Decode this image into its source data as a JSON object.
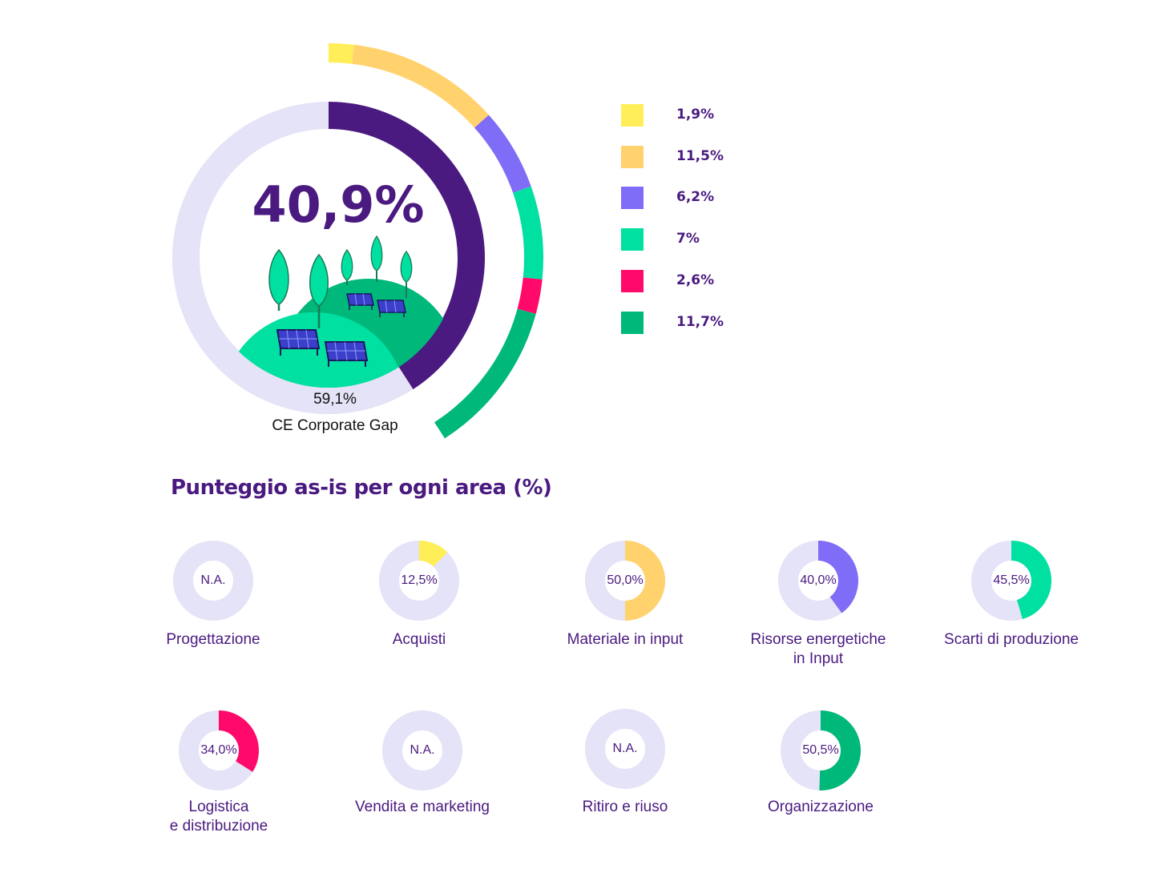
{
  "chart_data": [
    {
      "type": "pie",
      "variant": "donut",
      "center_value": "40,9%",
      "remainder_value": "59,1%",
      "remainder_label": "CE Corporate Gap",
      "score": 40.9,
      "gap": 59.1,
      "colors": {
        "score": "#4A1A80",
        "gap": "#E4E3F7"
      },
      "outer_ring": [
        {
          "value": 1.9,
          "label": "1,9%",
          "color": "#FFEE57"
        },
        {
          "value": 11.5,
          "label": "11,5%",
          "color": "#FFD26E"
        },
        {
          "value": 6.2,
          "label": "6,2%",
          "color": "#7F6CF7"
        },
        {
          "value": 7,
          "label": "7%",
          "color": "#00E0A1"
        },
        {
          "value": 2.6,
          "label": "2,6%",
          "color": "#FF0A6B"
        },
        {
          "value": 11.7,
          "label": "11,7%",
          "color": "#00B87A"
        }
      ],
      "legend_position": "right"
    },
    {
      "type": "pie",
      "variant": "donut-grid",
      "title": "Punteggio as-is per ogni area (%)",
      "track_color": "#E4E3F7",
      "items": [
        {
          "label": "Progettazione",
          "value_text": "N.A.",
          "value": null,
          "color": "#E4E3F7"
        },
        {
          "label": "Acquisti",
          "value_text": "12,5%",
          "value": 12.5,
          "color": "#FFEE57"
        },
        {
          "label": "Materiale in input",
          "value_text": "50,0%",
          "value": 50.0,
          "color": "#FFD26E"
        },
        {
          "label": "Risorse energetiche\nin Input",
          "value_text": "40,0%",
          "value": 40.0,
          "color": "#7F6CF7"
        },
        {
          "label": "Scarti di produzione",
          "value_text": "45,5%",
          "value": 45.5,
          "color": "#00E0A1"
        },
        {
          "label": "Logistica\ne distribuzione",
          "value_text": "34,0%",
          "value": 34.0,
          "color": "#FF0A6B"
        },
        {
          "label": "Vendita e marketing",
          "value_text": "N.A.",
          "value": null,
          "color": "#E4E3F7"
        },
        {
          "label": "Ritiro e riuso",
          "value_text": "N.A.",
          "value": null,
          "color": "#E4E3F7"
        },
        {
          "label": "Organizzazione",
          "value_text": "50,5%",
          "value": 50.5,
          "color": "#00B87A"
        }
      ]
    }
  ]
}
